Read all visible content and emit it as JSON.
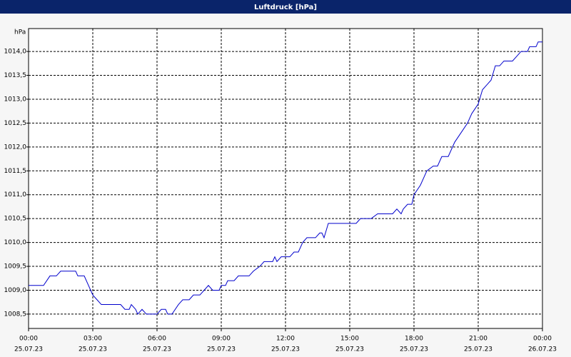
{
  "chart_data": {
    "type": "line",
    "title": "Luftdruck [hPa]",
    "y_label": "hPa",
    "x": [
      0,
      0.7,
      1,
      1.3,
      1.5,
      2.2,
      2.3,
      2.6,
      2.8,
      3,
      3.2,
      3.4,
      4.3,
      4.5,
      4.7,
      4.8,
      5.0,
      5.1,
      5.3,
      5.5,
      6.0,
      6.2,
      6.4,
      6.5,
      6.7,
      7.0,
      7.2,
      7.5,
      7.7,
      8.0,
      8.2,
      8.4,
      8.6,
      8.9,
      9.0,
      9.2,
      9.3,
      9.6,
      9.8,
      10.3,
      10.5,
      10.8,
      11.0,
      11.4,
      11.5,
      11.6,
      11.8,
      12.2,
      12.4,
      12.6,
      12.8,
      13.0,
      13.4,
      13.6,
      13.7,
      13.8,
      14.0,
      15.0,
      15.3,
      15.5,
      16.0,
      16.3,
      17.0,
      17.2,
      17.4,
      17.5,
      17.7,
      17.9,
      18.0,
      18.3,
      18.6,
      18.9,
      19.1,
      19.3,
      19.6,
      19.9,
      20.2,
      20.5,
      20.7,
      21.0,
      21.2,
      21.4,
      21.6,
      21.8,
      22.0,
      22.2,
      22.6,
      22.8,
      23.0,
      23.3,
      23.4,
      23.7,
      23.8,
      24
    ],
    "series": [
      {
        "name": "Luftdruck",
        "color": "#0000cc",
        "values": [
          1009.1,
          1009.1,
          1009.3,
          1009.3,
          1009.4,
          1009.4,
          1009.3,
          1009.3,
          1009.1,
          1008.9,
          1008.8,
          1008.7,
          1008.7,
          1008.6,
          1008.6,
          1008.7,
          1008.6,
          1008.5,
          1008.6,
          1008.5,
          1008.5,
          1008.6,
          1008.6,
          1008.5,
          1008.5,
          1008.7,
          1008.8,
          1008.8,
          1008.9,
          1008.9,
          1009.0,
          1009.1,
          1009.0,
          1009.0,
          1009.1,
          1009.1,
          1009.2,
          1009.2,
          1009.3,
          1009.3,
          1009.4,
          1009.5,
          1009.6,
          1009.6,
          1009.7,
          1009.6,
          1009.7,
          1009.7,
          1009.8,
          1009.8,
          1010.0,
          1010.1,
          1010.1,
          1010.2,
          1010.2,
          1010.1,
          1010.4,
          1010.4,
          1010.4,
          1010.5,
          1010.5,
          1010.6,
          1010.6,
          1010.7,
          1010.6,
          1010.7,
          1010.8,
          1010.8,
          1011.0,
          1011.2,
          1011.5,
          1011.6,
          1011.6,
          1011.8,
          1011.8,
          1012.1,
          1012.3,
          1012.5,
          1012.7,
          1012.9,
          1013.2,
          1013.3,
          1013.4,
          1013.7,
          1013.7,
          1013.8,
          1013.8,
          1013.9,
          1014.0,
          1014.0,
          1014.1,
          1014.1,
          1014.2,
          1014.2
        ]
      }
    ],
    "xlim": [
      0,
      24
    ],
    "xticks": [
      {
        "value": 0,
        "label": "00:00",
        "date": "25.07.23"
      },
      {
        "value": 3,
        "label": "03:00",
        "date": "25.07.23"
      },
      {
        "value": 6,
        "label": "06:00",
        "date": "25.07.23"
      },
      {
        "value": 9,
        "label": "09:00",
        "date": "25.07.23"
      },
      {
        "value": 12,
        "label": "12:00",
        "date": "25.07.23"
      },
      {
        "value": 15,
        "label": "15:00",
        "date": "25.07.23"
      },
      {
        "value": 18,
        "label": "18:00",
        "date": "25.07.23"
      },
      {
        "value": 21,
        "label": "21:00",
        "date": "25.07.23"
      },
      {
        "value": 24,
        "label": "00:00",
        "date": "26.07.23"
      }
    ],
    "ylim": [
      1008.2,
      1014.48
    ],
    "yticks": [
      {
        "value": 1008.5,
        "label": "1008,5"
      },
      {
        "value": 1009,
        "label": "1009,0"
      },
      {
        "value": 1009.5,
        "label": "1009,5"
      },
      {
        "value": 1010,
        "label": "1010,0"
      },
      {
        "value": 1010.5,
        "label": "1010,5"
      },
      {
        "value": 1011,
        "label": "1011,0"
      },
      {
        "value": 1011.5,
        "label": "1011,5"
      },
      {
        "value": 1012,
        "label": "1012,0"
      },
      {
        "value": 1012.5,
        "label": "1012,5"
      },
      {
        "value": 1013,
        "label": "1013,0"
      },
      {
        "value": 1013.5,
        "label": "1013,5"
      },
      {
        "value": 1014,
        "label": "1014,0"
      }
    ],
    "grid": true
  }
}
